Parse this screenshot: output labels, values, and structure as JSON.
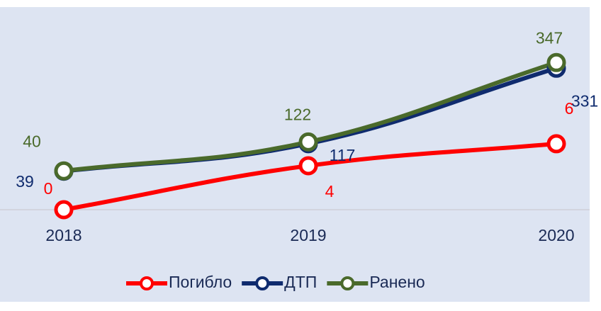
{
  "chart_data": {
    "type": "line",
    "categories": [
      "2018",
      "2019",
      "2020"
    ],
    "series": [
      {
        "name": "Погибло",
        "color": "#ff0000",
        "values": [
          0,
          4,
          6
        ],
        "axis": "y2"
      },
      {
        "name": "ДТП",
        "color": "#0f2b6e",
        "values": [
          39,
          117,
          331
        ]
      },
      {
        "name": "Ранено",
        "color": "#4a6a2b",
        "values": [
          40,
          122,
          347
        ]
      }
    ],
    "ylim": [
      -70,
      444
    ],
    "y2lim": [
      0,
      16.5
    ]
  }
}
